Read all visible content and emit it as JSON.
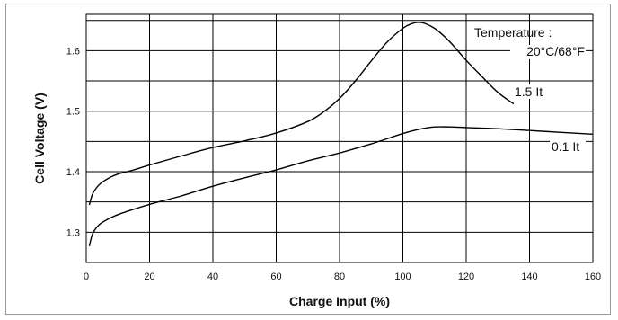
{
  "chart_data": {
    "type": "line",
    "title": "",
    "xlabel": "Charge Input (%)",
    "ylabel": "Cell Voltage (V)",
    "xlim": [
      0,
      160
    ],
    "ylim": [
      1.25,
      1.66
    ],
    "x_ticks": [
      0,
      20,
      40,
      60,
      80,
      100,
      120,
      140,
      160
    ],
    "y_ticks": [
      1.3,
      1.4,
      1.5,
      1.6
    ],
    "grid": true,
    "legend": "none",
    "annotations": {
      "temperature_label": "Temperature :",
      "temperature_value": "20°C/68°F"
    },
    "series": [
      {
        "name": "1.5 It",
        "x": [
          1,
          2,
          4,
          7,
          10,
          15,
          20,
          30,
          40,
          50,
          60,
          70,
          75,
          80,
          85,
          90,
          95,
          100,
          103,
          105,
          107,
          110,
          113,
          116,
          120,
          125,
          130,
          135
        ],
        "y": [
          1.345,
          1.363,
          1.378,
          1.389,
          1.396,
          1.403,
          1.411,
          1.426,
          1.44,
          1.451,
          1.464,
          1.483,
          1.499,
          1.521,
          1.55,
          1.583,
          1.614,
          1.637,
          1.645,
          1.647,
          1.645,
          1.637,
          1.624,
          1.608,
          1.584,
          1.557,
          1.531,
          1.512
        ]
      },
      {
        "name": "0.1 It",
        "x": [
          1,
          2,
          4,
          7,
          10,
          15,
          20,
          30,
          40,
          50,
          60,
          70,
          80,
          90,
          100,
          105,
          110,
          115,
          120,
          130,
          140,
          150,
          160
        ],
        "y": [
          1.277,
          1.297,
          1.312,
          1.322,
          1.329,
          1.338,
          1.346,
          1.36,
          1.376,
          1.39,
          1.403,
          1.418,
          1.431,
          1.446,
          1.463,
          1.47,
          1.474,
          1.474,
          1.473,
          1.471,
          1.468,
          1.465,
          1.462
        ]
      }
    ],
    "colors": {
      "line": "#000000",
      "grid": "#000000",
      "text": "#111111"
    }
  }
}
